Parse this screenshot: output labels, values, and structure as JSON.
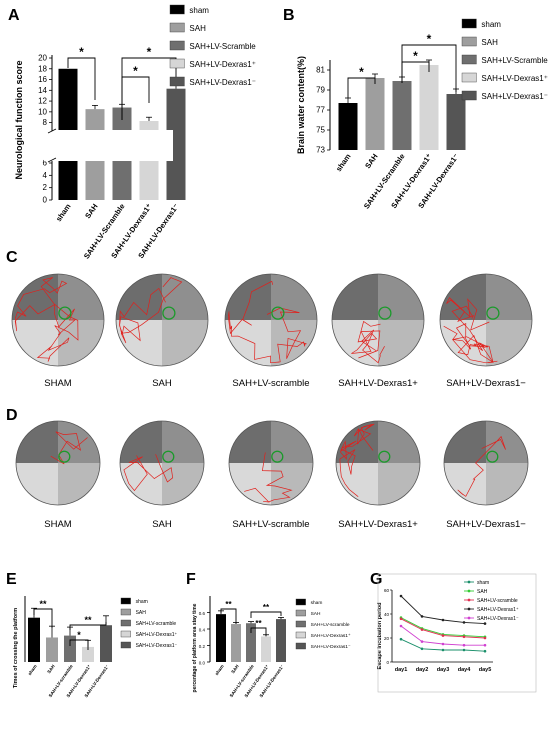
{
  "panels": {
    "A": {
      "letter": "A",
      "chart_data": {
        "type": "bar",
        "categories": [
          "sham",
          "SAH",
          "SAH+LV-Scramble",
          "SAH+LV-Dexras1⁺",
          "SAH+LV-Dexras1⁻"
        ],
        "values": [
          18,
          10.5,
          10.8,
          8.3,
          14.3
        ],
        "errors": [
          0,
          0.7,
          0.6,
          0.7,
          0.9
        ],
        "ylabel": "Neurological function score",
        "axis_break": [
          6,
          7
        ],
        "lower_ticks": [
          "0",
          "2",
          "4",
          "6"
        ],
        "upper_ticks": [
          "8",
          "10",
          "12",
          "14",
          "16",
          "18",
          "20"
        ],
        "legend": [
          "sham",
          "SAH",
          "SAH+LV-Scramble",
          "SAH+LV-Dexras1⁺",
          "SAH+LV-Dexras1⁻"
        ],
        "colors": [
          "#000000",
          "#9e9e9e",
          "#6f6f6f",
          "#d6d6d6",
          "#555555"
        ],
        "significance": [
          {
            "from": 0,
            "to": 1,
            "label": "*"
          },
          {
            "from": 2,
            "to": 3,
            "label": "*"
          },
          {
            "from": 2,
            "to": 4,
            "label": "*"
          }
        ]
      }
    },
    "B": {
      "letter": "B",
      "chart_data": {
        "type": "bar",
        "categories": [
          "sham",
          "SAH",
          "SAH+LV-Scramble",
          "SAH+LV-Dexras1⁺",
          "SAH+LV-Dexras1⁻"
        ],
        "values": [
          77.7,
          80.2,
          79.9,
          81.5,
          78.6
        ],
        "errors": [
          0.5,
          0.4,
          0.4,
          0.5,
          0.5
        ],
        "ylabel": "Brain water content(%)",
        "ylim": [
          73,
          82
        ],
        "ticks": [
          "73",
          "75",
          "77",
          "79",
          "81"
        ],
        "legend": [
          "sham",
          "SAH",
          "SAH+LV-Scramble",
          "SAH+LV-Dexras1⁺",
          "SAH+LV-Dexras1⁻"
        ],
        "colors": [
          "#000000",
          "#9e9e9e",
          "#6f6f6f",
          "#d6d6d6",
          "#555555"
        ],
        "significance": [
          {
            "from": 0,
            "to": 1,
            "label": "*"
          },
          {
            "from": 2,
            "to": 3,
            "label": "*"
          },
          {
            "from": 2,
            "to": 4,
            "label": "*"
          }
        ]
      }
    },
    "C": {
      "letter": "C",
      "labels": [
        "SHAM",
        "SAH",
        "SAH+LV-scramble",
        "SAH+LV-Dexras1+",
        "SAH+LV-Dexras1−"
      ]
    },
    "D": {
      "letter": "D",
      "labels": [
        "SHAM",
        "SAH",
        "SAH+LV-scramble",
        "SAH+LV-Dexras1+",
        "SAH+LV-Dexras1−"
      ]
    },
    "E": {
      "letter": "E",
      "chart_data": {
        "type": "bar",
        "categories": [
          "sham",
          "SAH",
          "SAH+LV-scramble",
          "SAH+LV-Dexras1⁺",
          "SAH+LV-Dexras1⁻"
        ],
        "values": [
          4.7,
          2.6,
          2.8,
          1.6,
          3.9
        ],
        "errors": [
          1.0,
          1.2,
          0.9,
          0.7,
          1.0
        ],
        "ylabel": "Times of crossing the platform",
        "ylim": [
          0,
          7
        ],
        "legend": [
          "sham",
          "SAH",
          "SAH+LV-scramble",
          "SAH+LV-Dexras1⁺",
          "SAH+LV-Dexras1⁻"
        ],
        "colors": [
          "#000000",
          "#9e9e9e",
          "#6f6f6f",
          "#d6d6d6",
          "#555555"
        ],
        "significance": [
          {
            "from": 0,
            "to": 1,
            "label": "**"
          },
          {
            "from": 2,
            "to": 3,
            "label": "*"
          },
          {
            "from": 2,
            "to": 4,
            "label": "**"
          }
        ]
      }
    },
    "F": {
      "letter": "F",
      "chart_data": {
        "type": "bar",
        "categories": [
          "sham",
          "SAH",
          "SAH+LV-scramble",
          "SAH+LV-Dexras1⁺",
          "SAH+LV-Dexras1⁻"
        ],
        "values": [
          0.58,
          0.46,
          0.47,
          0.31,
          0.52
        ],
        "errors": [
          0.04,
          0.02,
          0.02,
          0.02,
          0.02
        ],
        "ylabel": "percentage of platform area stay time",
        "ylim": [
          0,
          0.8
        ],
        "ticks": [
          "0.0",
          "0.2",
          "0.4",
          "0.6"
        ],
        "legend": [
          "sham",
          "SAH",
          "SAH+LV-scramble",
          "SAH+LV-Dexras1⁺",
          "SAH+LV-Dexras1⁻"
        ],
        "colors": [
          "#000000",
          "#9e9e9e",
          "#6f6f6f",
          "#d6d6d6",
          "#555555"
        ],
        "significance": [
          {
            "from": 0,
            "to": 1,
            "label": "**"
          },
          {
            "from": 2,
            "to": 3,
            "label": "**"
          },
          {
            "from": 2,
            "to": 4,
            "label": "**"
          }
        ]
      }
    },
    "G": {
      "letter": "G",
      "chart_data": {
        "type": "line",
        "x": [
          "day1",
          "day2",
          "day3",
          "day4",
          "day5"
        ],
        "ylabel": "Escape incubation period",
        "ylim": [
          0,
          60
        ],
        "ticks": [
          "0",
          "20",
          "40",
          "60"
        ],
        "series": [
          {
            "name": "sham",
            "values": [
              19,
              11,
              10,
              10,
              9
            ],
            "color": "#1a8f6a"
          },
          {
            "name": "SAH",
            "values": [
              37,
              28,
              23,
              22,
              21
            ],
            "color": "#33cc33"
          },
          {
            "name": "SAH+LV-scramble",
            "values": [
              36,
              27,
              22,
              21,
              20
            ],
            "color": "#e03050"
          },
          {
            "name": "SAH+LV-Dexras1⁺",
            "values": [
              55,
              38,
              35,
              33,
              32
            ],
            "color": "#222222"
          },
          {
            "name": "SAH+LV-Dexras1⁻",
            "values": [
              30,
              17,
              15,
              14,
              14
            ],
            "color": "#d040d0"
          }
        ]
      }
    }
  }
}
